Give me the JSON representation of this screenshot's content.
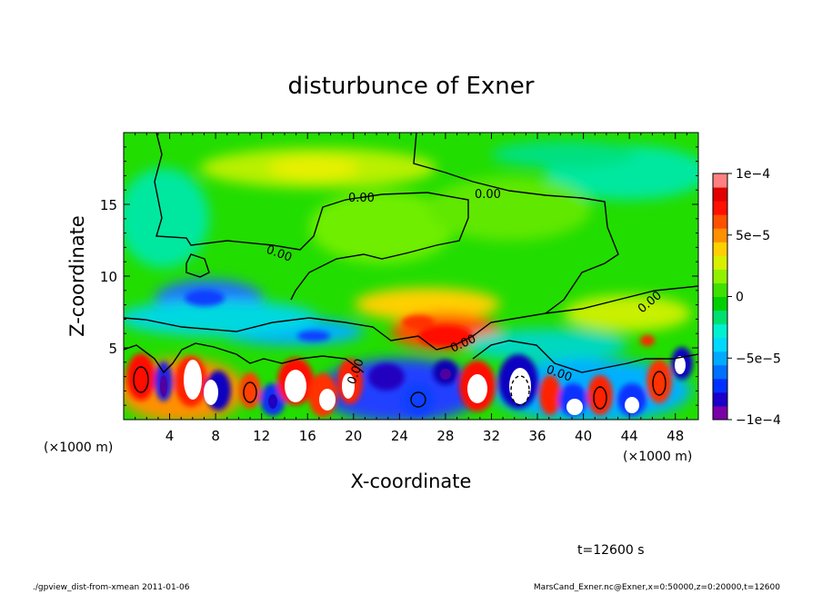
{
  "chart_data": {
    "type": "heatmap",
    "title": "disturbunce of Exner",
    "xlabel": "X-coordinate",
    "ylabel": "Z-coordinate",
    "x_unit_note": "(×1000 m)",
    "y_unit_note": "(×1000 m)",
    "xlim": [
      0,
      50
    ],
    "ylim": [
      0,
      20
    ],
    "x_ticks": [
      4,
      8,
      12,
      16,
      20,
      24,
      28,
      32,
      36,
      40,
      44,
      48
    ],
    "y_ticks": [
      5,
      10,
      15
    ],
    "colorbar": {
      "min": -0.0001,
      "max": 0.0001,
      "tick_values": [
        -0.0001,
        -5e-05,
        0,
        5e-05,
        0.0001
      ],
      "tick_labels": [
        "−1e−4",
        "−5e−5",
        "0",
        "5e−5",
        "1e−4"
      ],
      "colors": [
        "#7a00a8",
        "#1a00c8",
        "#0030ff",
        "#0070ff",
        "#00aaff",
        "#00d8ff",
        "#00f0d0",
        "#00e070",
        "#00d000",
        "#40e000",
        "#90f000",
        "#d8f000",
        "#ffd000",
        "#ff9000",
        "#ff5000",
        "#ff1000",
        "#e00000",
        "#ff8080"
      ]
    },
    "contour_labels": [
      "0.00",
      "0.00",
      "0.00",
      "0.00",
      "0.00",
      "0.00",
      "0.00"
    ],
    "field_description_values": {
      "background_green_value": 0,
      "yellow_upper_band_value": 3e-05,
      "blue_band_near_z7_value": -6e-05,
      "red_peak_near_x28_z6_value": 8e-05
    }
  },
  "annotation": {
    "time": "t=12600 s"
  },
  "footer": {
    "left": "./gpview_dist-from-xmean  2011-01-06",
    "right": "MarsCand_Exner.nc@Exner,x=0:50000,z=0:20000,t=12600"
  }
}
